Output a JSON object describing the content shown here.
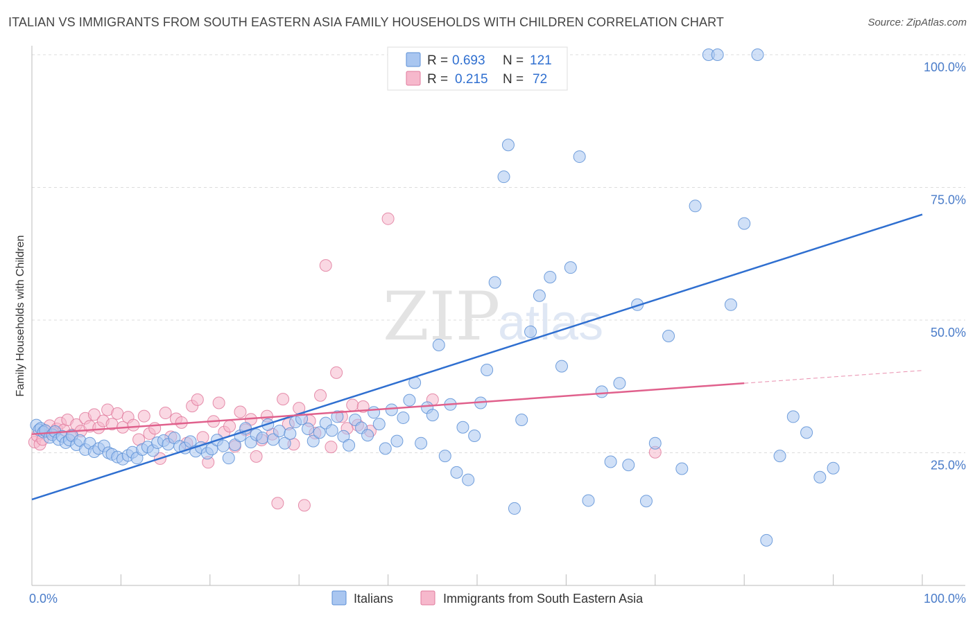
{
  "title": "ITALIAN VS IMMIGRANTS FROM SOUTH EASTERN ASIA FAMILY HOUSEHOLDS WITH CHILDREN CORRELATION CHART",
  "source": "Source: ZipAtlas.com",
  "watermark": {
    "zip": "ZIP",
    "atlas": "atlas"
  },
  "legend": {
    "r_label": "R =",
    "n_label": "N =",
    "rows": [
      {
        "r": "0.693",
        "n": "121"
      },
      {
        "r": "0.215",
        "n": "72"
      }
    ]
  },
  "colors": {
    "blue_fill": "#a9c6f0",
    "blue_stroke": "#5b8fd6",
    "blue_line": "#2f6fd0",
    "pink_fill": "#f6b8cc",
    "pink_stroke": "#e07a9c",
    "pink_line": "#e0608c",
    "grid": "#dcdcdc",
    "axis": "#bbbbbb"
  },
  "chart_data": {
    "type": "scatter",
    "title": "ITALIAN VS IMMIGRANTS FROM SOUTH EASTERN ASIA FAMILY HOUSEHOLDS WITH CHILDREN CORRELATION CHART",
    "xlabel": "",
    "ylabel": "Family Households with Children",
    "x_tick_labels": [
      "0.0%",
      "100.0%"
    ],
    "y_tick_labels": [
      "25.0%",
      "50.0%",
      "75.0%",
      "100.0%"
    ],
    "y_ticks": [
      25,
      50,
      75,
      100
    ],
    "xlim": [
      0,
      100
    ],
    "ylim": [
      0,
      100
    ],
    "grid": true,
    "legend_position": "top-center",
    "series": [
      {
        "name": "Italians",
        "r": 0.693,
        "n": 121,
        "trend": {
          "x0": 0,
          "y0": 16.2,
          "x1": 100,
          "y1": 69.9,
          "dashed_from": null
        },
        "points": [
          [
            0.5,
            30.2
          ],
          [
            0.8,
            29.3
          ],
          [
            1.0,
            29.6
          ],
          [
            1.3,
            28.9
          ],
          [
            1.5,
            29.2
          ],
          [
            2.0,
            27.9
          ],
          [
            2.3,
            28.4
          ],
          [
            2.6,
            29.0
          ],
          [
            3.0,
            27.5
          ],
          [
            3.4,
            28.1
          ],
          [
            3.8,
            26.9
          ],
          [
            4.2,
            27.4
          ],
          [
            4.5,
            28.2
          ],
          [
            5.0,
            26.5
          ],
          [
            5.4,
            27.3
          ],
          [
            6.0,
            25.6
          ],
          [
            6.5,
            26.8
          ],
          [
            7.0,
            25.2
          ],
          [
            7.5,
            25.8
          ],
          [
            8.1,
            26.3
          ],
          [
            8.6,
            25.0
          ],
          [
            9.0,
            24.7
          ],
          [
            9.6,
            24.2
          ],
          [
            10.2,
            23.8
          ],
          [
            10.8,
            24.5
          ],
          [
            11.3,
            25.1
          ],
          [
            11.8,
            24.0
          ],
          [
            12.4,
            25.6
          ],
          [
            13.0,
            26.1
          ],
          [
            13.6,
            25.4
          ],
          [
            14.1,
            26.9
          ],
          [
            14.8,
            27.3
          ],
          [
            15.3,
            26.6
          ],
          [
            16.0,
            27.8
          ],
          [
            16.6,
            26.2
          ],
          [
            17.2,
            25.9
          ],
          [
            17.8,
            27.1
          ],
          [
            18.4,
            25.3
          ],
          [
            19.0,
            26.0
          ],
          [
            19.7,
            24.9
          ],
          [
            20.2,
            25.7
          ],
          [
            20.8,
            27.4
          ],
          [
            21.5,
            26.3
          ],
          [
            22.1,
            24.0
          ],
          [
            22.8,
            26.5
          ],
          [
            23.4,
            28.2
          ],
          [
            24.0,
            29.6
          ],
          [
            24.6,
            27.0
          ],
          [
            25.2,
            28.4
          ],
          [
            25.9,
            27.8
          ],
          [
            26.5,
            30.3
          ],
          [
            27.1,
            27.5
          ],
          [
            27.8,
            29.1
          ],
          [
            28.4,
            26.8
          ],
          [
            29.0,
            28.6
          ],
          [
            29.6,
            30.8
          ],
          [
            30.3,
            31.4
          ],
          [
            31.0,
            29.5
          ],
          [
            31.6,
            27.2
          ],
          [
            32.3,
            28.8
          ],
          [
            33.0,
            30.6
          ],
          [
            33.7,
            29.2
          ],
          [
            34.3,
            31.8
          ],
          [
            35.0,
            28.1
          ],
          [
            35.6,
            26.4
          ],
          [
            36.3,
            31.2
          ],
          [
            37.0,
            29.7
          ],
          [
            37.7,
            28.3
          ],
          [
            38.4,
            32.6
          ],
          [
            39.0,
            30.4
          ],
          [
            39.7,
            25.8
          ],
          [
            40.4,
            33.1
          ],
          [
            41.0,
            27.2
          ],
          [
            41.7,
            31.6
          ],
          [
            42.4,
            34.9
          ],
          [
            43.0,
            38.2
          ],
          [
            43.7,
            26.8
          ],
          [
            44.4,
            33.5
          ],
          [
            45.0,
            32.1
          ],
          [
            45.7,
            45.3
          ],
          [
            46.4,
            24.4
          ],
          [
            47.0,
            34.1
          ],
          [
            47.7,
            21.3
          ],
          [
            48.4,
            29.8
          ],
          [
            49.0,
            19.9
          ],
          [
            49.7,
            28.2
          ],
          [
            50.4,
            34.4
          ],
          [
            51.1,
            40.6
          ],
          [
            52.0,
            57.1
          ],
          [
            53.0,
            77.0
          ],
          [
            53.5,
            83.0
          ],
          [
            54.2,
            14.5
          ],
          [
            55.0,
            31.2
          ],
          [
            56.0,
            47.8
          ],
          [
            57.0,
            54.6
          ],
          [
            58.2,
            58.1
          ],
          [
            59.5,
            41.3
          ],
          [
            60.5,
            59.9
          ],
          [
            61.5,
            80.8
          ],
          [
            62.5,
            16.0
          ],
          [
            64.0,
            36.5
          ],
          [
            65.0,
            23.3
          ],
          [
            66.0,
            38.1
          ],
          [
            67.0,
            22.7
          ],
          [
            68.0,
            52.9
          ],
          [
            69.0,
            15.9
          ],
          [
            70.0,
            26.8
          ],
          [
            71.5,
            47.0
          ],
          [
            73.0,
            22.0
          ],
          [
            74.5,
            71.5
          ],
          [
            76.0,
            100.0
          ],
          [
            77.0,
            100.0
          ],
          [
            78.5,
            52.9
          ],
          [
            80.0,
            68.2
          ],
          [
            81.5,
            100.0
          ],
          [
            82.5,
            8.5
          ],
          [
            84.0,
            24.4
          ],
          [
            85.5,
            31.8
          ],
          [
            87.0,
            28.8
          ],
          [
            88.5,
            20.4
          ],
          [
            90.0,
            22.1
          ]
        ]
      },
      {
        "name": "Immigrants from South Eastern Asia",
        "r": 0.215,
        "n": 72,
        "trend": {
          "x0": 0,
          "y0": 28.5,
          "x1": 100,
          "y1": 40.5,
          "dashed_from": 80
        },
        "points": [
          [
            0.3,
            27.0
          ],
          [
            0.6,
            28.2
          ],
          [
            0.9,
            26.6
          ],
          [
            1.2,
            27.5
          ],
          [
            1.6,
            29.0
          ],
          [
            2.0,
            30.1
          ],
          [
            2.4,
            28.7
          ],
          [
            2.8,
            29.5
          ],
          [
            3.2,
            30.6
          ],
          [
            3.6,
            29.3
          ],
          [
            4.0,
            31.2
          ],
          [
            4.5,
            28.4
          ],
          [
            5.0,
            30.3
          ],
          [
            5.5,
            29.1
          ],
          [
            6.0,
            31.5
          ],
          [
            6.5,
            30.0
          ],
          [
            7.0,
            32.2
          ],
          [
            7.5,
            29.7
          ],
          [
            8.0,
            31.0
          ],
          [
            8.5,
            33.1
          ],
          [
            9.0,
            30.4
          ],
          [
            9.6,
            32.4
          ],
          [
            10.2,
            29.8
          ],
          [
            10.8,
            31.7
          ],
          [
            11.4,
            30.2
          ],
          [
            12.0,
            27.5
          ],
          [
            12.6,
            31.9
          ],
          [
            13.2,
            28.6
          ],
          [
            13.8,
            29.6
          ],
          [
            14.4,
            23.9
          ],
          [
            15.0,
            32.5
          ],
          [
            15.6,
            28.0
          ],
          [
            16.2,
            31.4
          ],
          [
            16.8,
            30.7
          ],
          [
            17.4,
            26.8
          ],
          [
            18.0,
            33.8
          ],
          [
            18.6,
            35.0
          ],
          [
            19.2,
            27.9
          ],
          [
            19.8,
            23.2
          ],
          [
            20.4,
            30.9
          ],
          [
            21.0,
            34.4
          ],
          [
            21.6,
            28.9
          ],
          [
            22.2,
            30.0
          ],
          [
            22.8,
            26.2
          ],
          [
            23.4,
            32.7
          ],
          [
            24.0,
            29.3
          ],
          [
            24.6,
            31.3
          ],
          [
            25.2,
            24.3
          ],
          [
            25.8,
            27.4
          ],
          [
            26.4,
            31.9
          ],
          [
            27.0,
            28.5
          ],
          [
            27.6,
            15.5
          ],
          [
            28.2,
            35.1
          ],
          [
            28.8,
            30.4
          ],
          [
            29.4,
            26.6
          ],
          [
            30.0,
            33.4
          ],
          [
            30.6,
            15.1
          ],
          [
            31.2,
            31.0
          ],
          [
            31.8,
            28.7
          ],
          [
            32.4,
            35.8
          ],
          [
            33.0,
            60.3
          ],
          [
            33.6,
            26.1
          ],
          [
            34.2,
            40.1
          ],
          [
            34.8,
            31.8
          ],
          [
            35.4,
            29.6
          ],
          [
            36.0,
            34.0
          ],
          [
            36.6,
            30.2
          ],
          [
            37.2,
            33.7
          ],
          [
            38.0,
            29.1
          ],
          [
            40.0,
            69.1
          ],
          [
            45.0,
            35.0
          ],
          [
            70.0,
            25.1
          ]
        ]
      }
    ]
  },
  "bottom_legend": [
    {
      "label": "Italians"
    },
    {
      "label": "Immigrants from South Eastern Asia"
    }
  ]
}
